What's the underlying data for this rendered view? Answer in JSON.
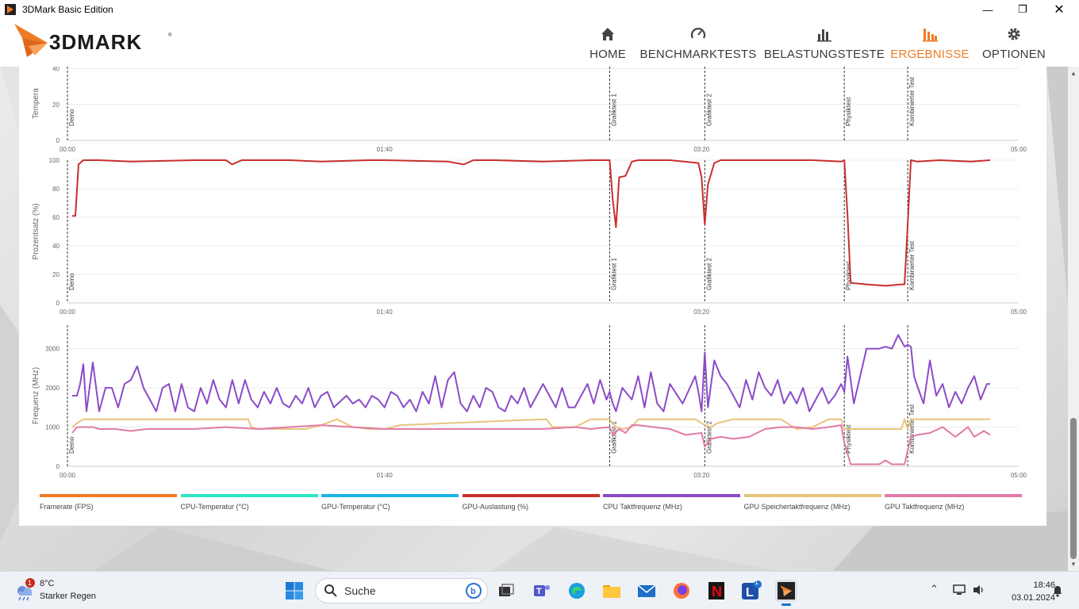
{
  "window": {
    "title": "3DMark Basic Edition"
  },
  "nav": [
    {
      "label": "HOME",
      "icon": "home-icon",
      "active": false
    },
    {
      "label": "BENCHMARKTESTS",
      "icon": "gauge-icon",
      "active": false
    },
    {
      "label": "BELASTUNGSTESTE",
      "icon": "bar-chart-icon",
      "active": false
    },
    {
      "label": "ERGEBNISSE",
      "icon": "results-icon",
      "active": true
    },
    {
      "label": "OPTIONEN",
      "icon": "gear-icon",
      "active": false
    }
  ],
  "colors": {
    "accent": "#f07b24",
    "gpu_load": "#c8302e",
    "cpu_clock": "#8b4bc8",
    "gpu_mem_clock": "#e8c47e",
    "gpu_clock": "#e27aa8",
    "framerate": "#f07b24",
    "cpu_temp": "#2ee6c2",
    "gpu_temp": "#1fb3e8"
  },
  "charts": {
    "x_ticks": [
      "00:00",
      "01:40",
      "03:20",
      "05:00"
    ],
    "markers": [
      {
        "label": "Demo",
        "t": 0
      },
      {
        "label": "Grafiktest 1",
        "t": 171
      },
      {
        "label": "Grafiktest 2",
        "t": 201
      },
      {
        "label": "Physiktest",
        "t": 245
      },
      {
        "label": "Kombinierter Test",
        "t": 265
      }
    ]
  },
  "chart_data": [
    {
      "type": "line",
      "ylabel": "Tempera",
      "xlim": [
        0,
        300
      ],
      "ylim": [
        0,
        50
      ],
      "yticks": [
        0,
        20,
        40
      ],
      "series": []
    },
    {
      "type": "line",
      "ylabel": "Prozentsatz (%)",
      "xlim": [
        0,
        300
      ],
      "ylim": [
        0,
        100
      ],
      "yticks": [
        0,
        20,
        40,
        60,
        80,
        100
      ],
      "series": [
        {
          "name": "GPU-Auslastung (%)",
          "color": "#c8302e",
          "x": [
            1.5,
            2.5,
            3.5,
            5,
            10,
            20,
            40,
            50,
            52,
            55,
            60,
            70,
            80,
            95,
            100,
            120,
            125,
            128,
            135,
            150,
            165,
            170,
            171,
            172,
            173,
            174,
            176,
            178,
            180,
            190,
            199,
            200,
            201,
            202,
            204,
            206,
            210,
            220,
            235,
            244,
            245,
            246,
            247,
            252,
            258,
            263,
            264,
            265,
            266,
            268,
            275,
            285,
            291
          ],
          "y": [
            61,
            61,
            97,
            100,
            100,
            99,
            100,
            100,
            97,
            100,
            100,
            100,
            99,
            100,
            100,
            99,
            97,
            100,
            100,
            99,
            100,
            100,
            100,
            72,
            53,
            88,
            89,
            99,
            100,
            100,
            98,
            88,
            55,
            83,
            98,
            100,
            100,
            100,
            100,
            99,
            100,
            62,
            14,
            13,
            12,
            13,
            13,
            55,
            100,
            99,
            100,
            99,
            100
          ]
        }
      ]
    },
    {
      "type": "line",
      "ylabel": "Frequenz (MHz)",
      "xlim": [
        0,
        300
      ],
      "ylim": [
        0,
        3600
      ],
      "yticks": [
        0,
        1000,
        2000,
        3000
      ],
      "series": [
        {
          "name": "CPU Taktfrequenz (MHz)",
          "color": "#8b4bc8",
          "x": [
            1.5,
            3,
            4,
            5,
            6,
            8,
            10,
            12,
            14,
            16,
            18,
            20,
            22,
            24,
            26,
            28,
            30,
            32,
            34,
            36,
            38,
            40,
            42,
            44,
            46,
            48,
            50,
            52,
            54,
            56,
            58,
            60,
            62,
            64,
            66,
            68,
            70,
            72,
            74,
            76,
            78,
            80,
            82,
            84,
            86,
            88,
            90,
            92,
            94,
            96,
            98,
            100,
            102,
            104,
            106,
            108,
            110,
            112,
            114,
            116,
            118,
            120,
            122,
            124,
            126,
            128,
            130,
            132,
            134,
            136,
            138,
            140,
            142,
            144,
            146,
            148,
            150,
            152,
            154,
            156,
            158,
            160,
            162,
            164,
            166,
            168,
            170,
            171,
            172,
            173,
            175,
            178,
            180,
            182,
            184,
            186,
            188,
            190,
            194,
            198,
            199,
            200,
            201,
            202,
            204,
            206,
            208,
            210,
            212,
            214,
            216,
            218,
            220,
            222,
            224,
            226,
            228,
            230,
            232,
            234,
            236,
            238,
            240,
            242,
            244,
            245,
            246,
            248,
            252,
            256,
            258,
            260,
            262,
            264,
            265,
            266,
            267,
            268,
            270,
            272,
            274,
            276,
            278,
            280,
            282,
            284,
            286,
            288,
            290,
            291
          ],
          "y": [
            1800,
            1800,
            2100,
            2600,
            1400,
            2650,
            1400,
            2000,
            2000,
            1500,
            2100,
            2200,
            2550,
            2000,
            1700,
            1400,
            2000,
            2100,
            1400,
            2100,
            1500,
            1400,
            2000,
            1600,
            2200,
            1700,
            1500,
            2200,
            1600,
            2200,
            1700,
            1500,
            1900,
            1600,
            2000,
            1600,
            1500,
            1800,
            1600,
            2000,
            1500,
            1800,
            1900,
            1500,
            1650,
            1800,
            1600,
            1700,
            1500,
            1800,
            1700,
            1500,
            1900,
            1800,
            1500,
            1700,
            1400,
            1900,
            1600,
            2300,
            1500,
            2200,
            2400,
            1600,
            1400,
            1800,
            1500,
            2000,
            1900,
            1500,
            1400,
            1800,
            1600,
            2000,
            1500,
            1800,
            2100,
            1800,
            1500,
            2000,
            1500,
            1500,
            1800,
            2100,
            1600,
            2200,
            1700,
            1900,
            1600,
            1400,
            2000,
            1700,
            2300,
            1500,
            2400,
            1600,
            1400,
            2100,
            1600,
            2300,
            1900,
            1400,
            2900,
            1500,
            2700,
            2300,
            2100,
            1800,
            1500,
            2200,
            1700,
            2400,
            2000,
            1800,
            2200,
            1600,
            1900,
            1600,
            2000,
            1400,
            1700,
            2000,
            1600,
            1800,
            2100,
            1900,
            2800,
            1600,
            3000,
            3000,
            3050,
            3000,
            3350,
            3050,
            3100,
            3050,
            2300,
            2050,
            1600,
            2700,
            1800,
            2100,
            1500,
            1900,
            1600,
            2000,
            2300,
            1700,
            2100,
            2100
          ]
        },
        {
          "name": "GPU Speichertaktfrequenz (MHz)",
          "color": "#e8c47e",
          "x": [
            1.5,
            3,
            5,
            8,
            10,
            12,
            50,
            55,
            57,
            58,
            60,
            63,
            65,
            75,
            80,
            85,
            90,
            95,
            100,
            105,
            150,
            151,
            153,
            160,
            165,
            171,
            173,
            175,
            178,
            180,
            185,
            190,
            198,
            201,
            203,
            205,
            210,
            220,
            225,
            228,
            230,
            235,
            240,
            244,
            245,
            246,
            255,
            262,
            263,
            264,
            265,
            266,
            267,
            280,
            291
          ],
          "y": [
            1000,
            1100,
            1200,
            1200,
            1200,
            1200,
            1200,
            1200,
            1200,
            1000,
            950,
            950,
            950,
            950,
            1050,
            1200,
            1000,
            950,
            950,
            1050,
            1200,
            1200,
            1000,
            1000,
            1200,
            1200,
            1000,
            950,
            1000,
            1200,
            1200,
            1200,
            1200,
            1050,
            1000,
            1100,
            1200,
            1200,
            1200,
            1050,
            950,
            1000,
            1200,
            1200,
            950,
            950,
            950,
            950,
            950,
            1200,
            950,
            1200,
            1200,
            1200,
            1200
          ]
        },
        {
          "name": "GPU Taktfrequenz (MHz)",
          "color": "#e27aa8",
          "x": [
            1.5,
            3,
            5,
            8,
            10,
            15,
            20,
            25,
            30,
            40,
            50,
            60,
            70,
            80,
            90,
            100,
            110,
            120,
            130,
            140,
            150,
            160,
            165,
            171,
            172,
            174,
            176,
            178,
            180,
            185,
            190,
            195,
            200,
            201,
            203,
            206,
            210,
            215,
            220,
            225,
            230,
            235,
            240,
            244,
            245,
            247,
            252,
            256,
            258,
            260,
            262,
            264,
            266,
            268,
            272,
            276,
            280,
            284,
            286,
            289,
            291
          ],
          "y": [
            850,
            1000,
            1000,
            1000,
            950,
            950,
            900,
            950,
            950,
            950,
            1000,
            950,
            1000,
            1050,
            1000,
            950,
            950,
            950,
            950,
            950,
            950,
            1000,
            950,
            1000,
            800,
            950,
            850,
            1050,
            1050,
            1000,
            950,
            800,
            850,
            500,
            700,
            750,
            700,
            750,
            950,
            1000,
            1000,
            950,
            1000,
            1050,
            600,
            50,
            50,
            50,
            150,
            50,
            50,
            50,
            750,
            800,
            850,
            1000,
            750,
            1000,
            750,
            900,
            800
          ]
        }
      ]
    }
  ],
  "legend": [
    {
      "label": "Framerate (FPS)",
      "color": "#f07b24"
    },
    {
      "label": "CPU-Temperatur (°C)",
      "color": "#2ee6c2"
    },
    {
      "label": "GPU-Temperatur (°C)",
      "color": "#1fb3e8"
    },
    {
      "label": "GPU-Auslastung (%)",
      "color": "#c8302e"
    },
    {
      "label": "CPU Taktfrequenz (MHz)",
      "color": "#8b4bc8"
    },
    {
      "label": "GPU Speichertaktfrequenz (MHz)",
      "color": "#e8c47e"
    },
    {
      "label": "GPU Taktfrequenz (MHz)",
      "color": "#e27aa8"
    }
  ],
  "taskbar": {
    "weather_badge": "1",
    "weather_temp": "8°C",
    "weather_desc": "Starker Regen",
    "search_placeholder": "Suche",
    "app_badge": "1",
    "time": "18:46",
    "date": "03.01.2024"
  }
}
